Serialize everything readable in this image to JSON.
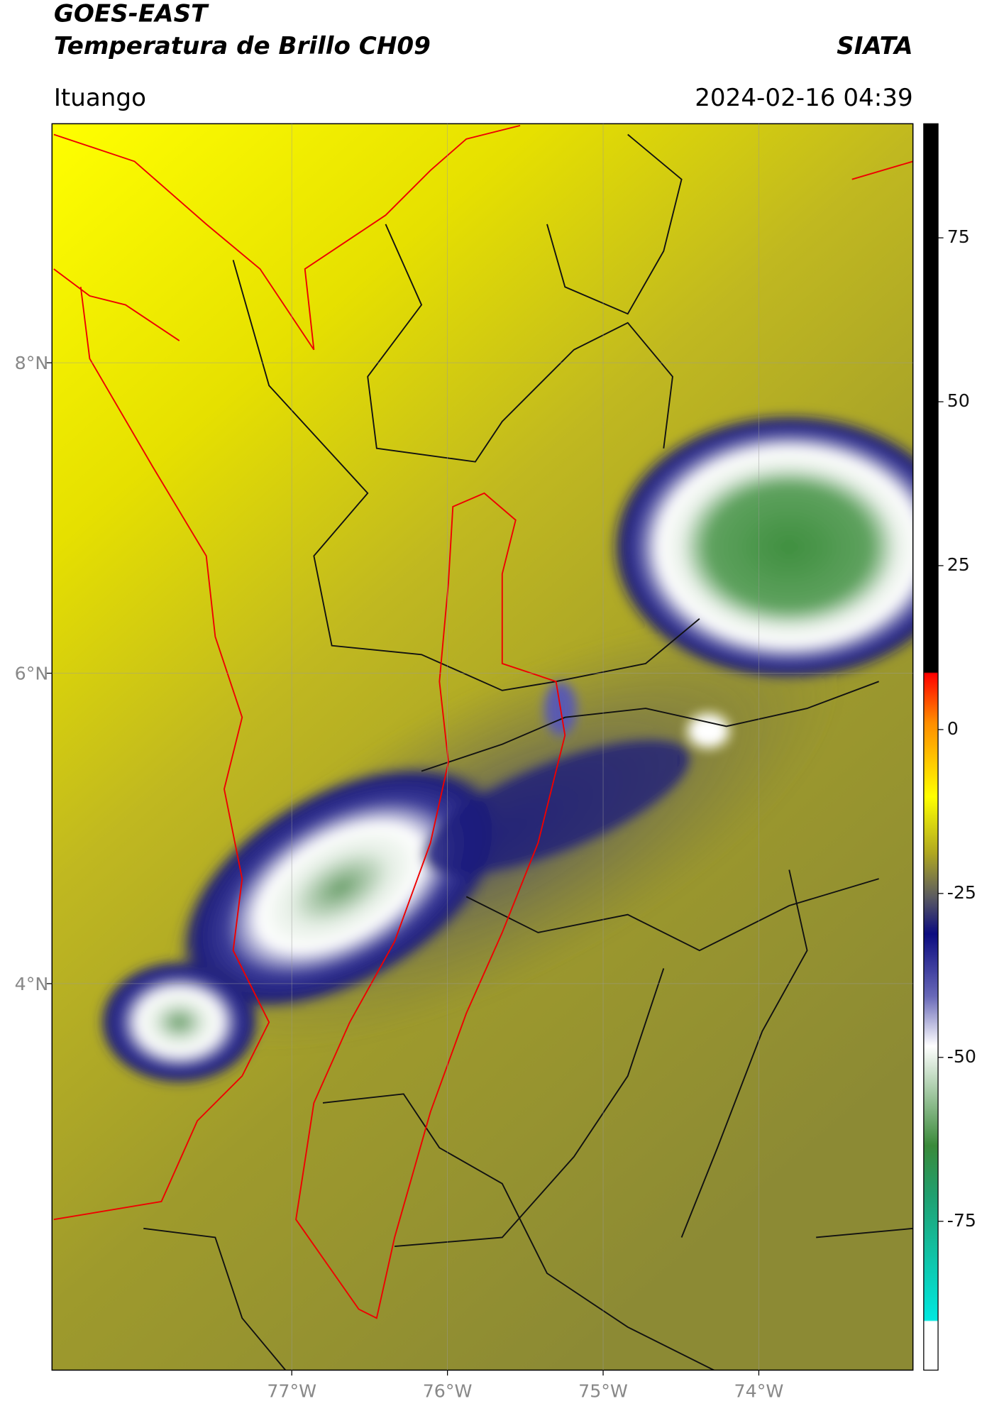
{
  "header": {
    "title": "GOES-EAST",
    "subtitle": "Temperatura de Brillo CH09",
    "source": "SIATA",
    "location": "Ituango",
    "datetime": "2024-02-16 04:39"
  },
  "map": {
    "xlim": [
      -78.54,
      -73.01
    ],
    "ylim": [
      1.51,
      9.54
    ],
    "xticks": [
      {
        "value": -77,
        "label": "77°W"
      },
      {
        "value": -76,
        "label": "76°W"
      },
      {
        "value": -75,
        "label": "75°W"
      },
      {
        "value": -74,
        "label": "74°W"
      }
    ],
    "yticks": [
      {
        "value": 4,
        "label": "4°N"
      },
      {
        "value": 6,
        "label": "6°N"
      },
      {
        "value": 8,
        "label": "8°N"
      }
    ],
    "grid": true
  },
  "colorbar": {
    "lim": [
      -97.7,
      92.4
    ],
    "ticks": [
      75,
      50,
      25,
      0,
      -25,
      -50,
      -75
    ]
  }
}
